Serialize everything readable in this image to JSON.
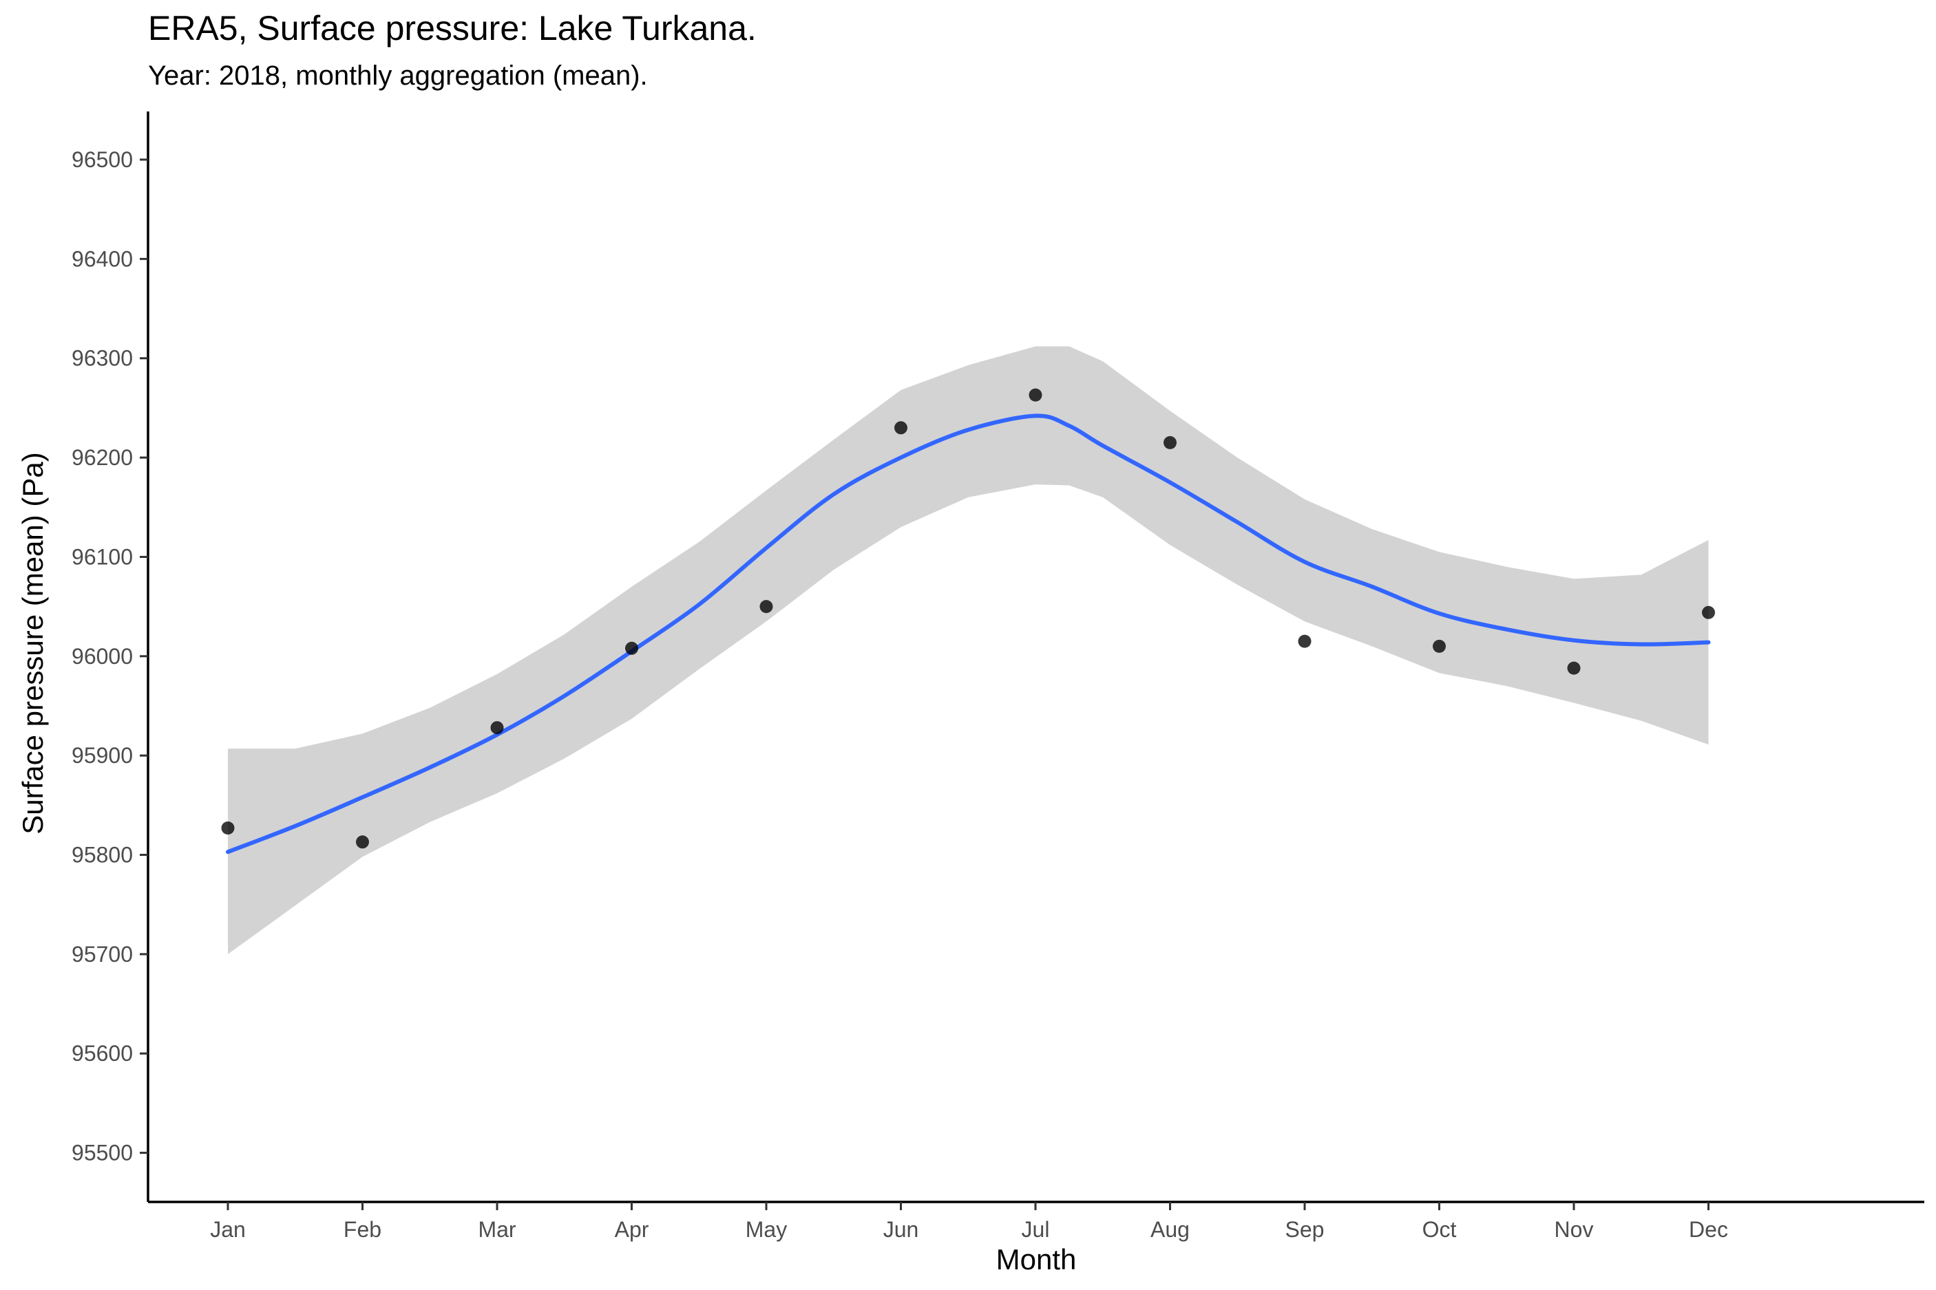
{
  "chart_data": {
    "type": "scatter",
    "title": "ERA5, Surface pressure: Lake Turkana.",
    "subtitle": "Year: 2018, monthly aggregation (mean).",
    "xlabel": "Month",
    "ylabel": "Surface pressure (mean) (Pa)",
    "categories": [
      "Jan",
      "Feb",
      "Mar",
      "Apr",
      "May",
      "Jun",
      "Jul",
      "Aug",
      "Sep",
      "Oct",
      "Nov",
      "Dec"
    ],
    "ylim": [
      95450,
      96550
    ],
    "yticks": [
      95500,
      95600,
      95700,
      95800,
      95900,
      96000,
      96100,
      96200,
      96300,
      96400,
      96500
    ],
    "grid": false,
    "series": [
      {
        "kind": "points",
        "color": "#000000",
        "x": [
          1,
          2,
          3,
          4,
          5,
          6,
          7,
          8,
          9,
          10,
          11,
          12
        ],
        "values": [
          95827,
          95813,
          95928,
          96008,
          96050,
          96230,
          96263,
          96215,
          96015,
          96010,
          95988,
          96044
        ]
      },
      {
        "kind": "smooth",
        "color": "#3366FF",
        "x": [
          1,
          1.5,
          2,
          2.5,
          3,
          3.5,
          4,
          4.5,
          5,
          5.5,
          6,
          6.5,
          7,
          7.25,
          7.5,
          8,
          8.5,
          9,
          9.5,
          10,
          10.5,
          11,
          11.5,
          12
        ],
        "values": [
          95803,
          95829,
          95858,
          95888,
          95921,
          95960,
          96005,
          96052,
          96109,
          96163,
          96200,
          96228,
          96242,
          96232,
          96212,
          96175,
          96135,
          96095,
          96070,
          96043,
          96027,
          96016,
          96012,
          96014
        ]
      },
      {
        "kind": "confidence-band",
        "color": "#D3D3D3",
        "x": [
          1,
          1.5,
          2,
          2.5,
          3,
          3.5,
          4,
          4.5,
          5,
          5.5,
          6,
          6.5,
          7,
          7.25,
          7.5,
          8,
          8.5,
          9,
          9.5,
          10,
          10.5,
          11,
          11.5,
          12
        ],
        "upper": [
          95907,
          95907,
          95922,
          95948,
          95982,
          96022,
          96070,
          96115,
          96167,
          96218,
          96268,
          96293,
          96312,
          96312,
          96297,
          96247,
          96200,
          96158,
          96128,
          96105,
          96090,
          96078,
          96082,
          96117
        ],
        "lower": [
          95700,
          95749,
          95798,
          95833,
          95862,
          95897,
          95937,
          95987,
          96035,
          96087,
          96130,
          96160,
          96173,
          96172,
          96160,
          96112,
          96072,
          96035,
          96010,
          95983,
          95970,
          95953,
          95935,
          95911
        ]
      }
    ]
  }
}
